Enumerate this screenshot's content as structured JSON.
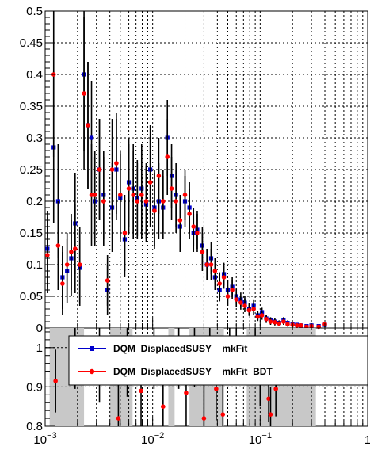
{
  "chart_data": [
    {
      "type": "scatter",
      "panel": "top",
      "xscale": "log",
      "xlim": [
        0.001,
        1
      ],
      "ylim": [
        0,
        0.5
      ],
      "grid": true,
      "yticks": [
        {
          "value": 0,
          "label": "0"
        },
        {
          "value": 0.05,
          "label": "0.05"
        },
        {
          "value": 0.1,
          "label": "0.1"
        },
        {
          "value": 0.15,
          "label": "0.15"
        },
        {
          "value": 0.2,
          "label": "0.2"
        },
        {
          "value": 0.25,
          "label": "0.25"
        },
        {
          "value": 0.3,
          "label": "0.3"
        },
        {
          "value": 0.35,
          "label": "0.35"
        },
        {
          "value": 0.4,
          "label": "0.4"
        },
        {
          "value": 0.45,
          "label": "0.45"
        },
        {
          "value": 0.5,
          "label": "0.5"
        }
      ],
      "series": [
        {
          "name": "DQM_DisplacedSUSY__mkFit_",
          "color": "#0000cc",
          "marker": "square",
          "x": [
            0.00105,
            0.0012,
            0.00132,
            0.00145,
            0.0016,
            0.00175,
            0.0019,
            0.0021,
            0.0023,
            0.0025,
            0.0027,
            0.0029,
            0.0032,
            0.0035,
            0.0038,
            0.0042,
            0.0046,
            0.005,
            0.0055,
            0.006,
            0.0066,
            0.0072,
            0.0079,
            0.0087,
            0.0095,
            0.0104,
            0.0114,
            0.0125,
            0.0137,
            0.015,
            0.0165,
            0.018,
            0.02,
            0.022,
            0.024,
            0.026,
            0.029,
            0.032,
            0.035,
            0.038,
            0.042,
            0.046,
            0.05,
            0.055,
            0.06,
            0.066,
            0.072,
            0.079,
            0.087,
            0.095,
            0.104,
            0.114,
            0.125,
            0.137,
            0.15,
            0.165,
            0.18,
            0.2,
            0.22,
            0.24,
            0.27,
            0.3,
            0.35,
            0.4
          ],
          "y": [
            0.125,
            0.285,
            0.2,
            0.08,
            0.09,
            0.11,
            0.165,
            0.095,
            0.4,
            0.32,
            0.3,
            0.2,
            0.25,
            0.21,
            0.06,
            0.19,
            0.25,
            0.205,
            0.14,
            0.23,
            0.22,
            0.205,
            0.22,
            0.195,
            0.25,
            0.19,
            0.2,
            0.19,
            0.3,
            0.24,
            0.21,
            0.16,
            0.2,
            0.19,
            0.15,
            0.155,
            0.13,
            0.1,
            0.11,
            0.08,
            0.06,
            0.085,
            0.06,
            0.065,
            0.05,
            0.045,
            0.04,
            0.03,
            0.035,
            0.02,
            0.025,
            0.015,
            0.012,
            0.01,
            0.008,
            0.012,
            0.008,
            0.006,
            0.005,
            0.004,
            0.003,
            0.004,
            0.003,
            0.005
          ],
          "err": [
            0.06,
            0.12,
            0.09,
            0.05,
            0.05,
            0.06,
            0.08,
            0.06,
            0.12,
            0.1,
            0.09,
            0.07,
            0.08,
            0.07,
            0.04,
            0.07,
            0.08,
            0.07,
            0.06,
            0.07,
            0.07,
            0.06,
            0.07,
            0.06,
            0.07,
            0.06,
            0.06,
            0.05,
            0.06,
            0.05,
            0.05,
            0.04,
            0.04,
            0.04,
            0.03,
            0.03,
            0.03,
            0.025,
            0.025,
            0.02,
            0.018,
            0.018,
            0.015,
            0.015,
            0.012,
            0.011,
            0.01,
            0.009,
            0.009,
            0.007,
            0.007,
            0.006,
            0.005,
            0.005,
            0.004,
            0.005,
            0.004,
            0.004,
            0.003,
            0.003,
            0.003,
            0.003,
            0.003,
            0.004
          ]
        },
        {
          "name": "DQM_DisplacedSUSY__mkFit_BDT_",
          "color": "#ff0000",
          "marker": "circle",
          "x": [
            0.00105,
            0.0012,
            0.00132,
            0.00145,
            0.0016,
            0.00175,
            0.0019,
            0.0021,
            0.0023,
            0.0025,
            0.0027,
            0.0029,
            0.0032,
            0.0035,
            0.0038,
            0.0042,
            0.0046,
            0.005,
            0.0055,
            0.006,
            0.0066,
            0.0072,
            0.0079,
            0.0087,
            0.0095,
            0.0104,
            0.0114,
            0.0125,
            0.0137,
            0.015,
            0.0165,
            0.018,
            0.02,
            0.022,
            0.024,
            0.026,
            0.029,
            0.032,
            0.035,
            0.038,
            0.042,
            0.046,
            0.05,
            0.055,
            0.06,
            0.066,
            0.072,
            0.079,
            0.087,
            0.095,
            0.104,
            0.114,
            0.125,
            0.137,
            0.15,
            0.165,
            0.18,
            0.2,
            0.22,
            0.24,
            0.27,
            0.3,
            0.35,
            0.4
          ],
          "y": [
            0.115,
            0.4,
            0.13,
            0.07,
            0.1,
            0.12,
            0.125,
            0.1,
            0.37,
            0.32,
            0.21,
            0.21,
            0.25,
            0.2,
            0.075,
            0.25,
            0.26,
            0.21,
            0.15,
            0.22,
            0.21,
            0.2,
            0.21,
            0.2,
            0.23,
            0.185,
            0.24,
            0.2,
            0.27,
            0.22,
            0.2,
            0.17,
            0.21,
            0.18,
            0.16,
            0.15,
            0.12,
            0.1,
            0.1,
            0.09,
            0.07,
            0.08,
            0.05,
            0.06,
            0.045,
            0.04,
            0.035,
            0.028,
            0.03,
            0.018,
            0.02,
            0.014,
            0.01,
            0.009,
            0.007,
            0.01,
            0.006,
            0.005,
            0.004,
            0.004,
            0.002,
            0.003,
            0.002,
            0.006
          ],
          "err": [
            0.06,
            0.13,
            0.07,
            0.05,
            0.05,
            0.06,
            0.07,
            0.06,
            0.12,
            0.1,
            0.08,
            0.07,
            0.08,
            0.07,
            0.04,
            0.08,
            0.08,
            0.07,
            0.06,
            0.07,
            0.07,
            0.06,
            0.07,
            0.06,
            0.07,
            0.06,
            0.06,
            0.05,
            0.06,
            0.05,
            0.05,
            0.04,
            0.04,
            0.04,
            0.03,
            0.03,
            0.03,
            0.025,
            0.025,
            0.02,
            0.018,
            0.018,
            0.015,
            0.015,
            0.012,
            0.011,
            0.01,
            0.009,
            0.009,
            0.007,
            0.007,
            0.006,
            0.005,
            0.005,
            0.004,
            0.005,
            0.004,
            0.004,
            0.003,
            0.003,
            0.003,
            0.003,
            0.003,
            0.004
          ]
        }
      ],
      "legend": {
        "position": "bottom-right",
        "entries": [
          "DQM_DisplacedSUSY__mkFit_",
          "DQM_DisplacedSUSY__mkFit_BDT_"
        ]
      }
    },
    {
      "type": "scatter",
      "panel": "ratio",
      "xscale": "log",
      "xlim": [
        0.001,
        1
      ],
      "ylim": [
        0.8,
        1.05
      ],
      "grid": true,
      "yticks": [
        {
          "value": 0.8,
          "label": "0.8"
        },
        {
          "value": 0.9,
          "label": "0.9"
        },
        {
          "value": 1,
          "label": "1"
        }
      ],
      "xticks": [
        {
          "value": 0.001,
          "base": "10",
          "exp": "−3"
        },
        {
          "value": 0.01,
          "base": "10",
          "exp": "−2"
        },
        {
          "value": 0.1,
          "base": "10",
          "exp": "−1"
        },
        {
          "value": 1,
          "base": "1",
          "exp": ""
        }
      ],
      "band_color": "#c8c8c8",
      "series": [
        {
          "name": "DQM_DisplacedSUSY__mkFit_BDT_",
          "color": "#ff0000",
          "marker": "circle",
          "x": [
            0.00125,
            0.0019,
            0.0032,
            0.0048,
            0.0058,
            0.0078,
            0.0103,
            0.0125,
            0.0175,
            0.0205,
            0.0245,
            0.03,
            0.034,
            0.039,
            0.045,
            0.052,
            0.06,
            0.09,
            0.1,
            0.12,
            0.125,
            0.14
          ],
          "y": [
            0.915,
            0.995,
            0.96,
            0.82,
            0.995,
            0.89,
            0.995,
            0.85,
            0.995,
            0.885,
            0.99,
            0.82,
            0.995,
            0.895,
            0.83,
            0.99,
            0.995,
            0.995,
            0.91,
            0.87,
            0.83,
            0.895
          ],
          "err": [
            0.08,
            0.1,
            0.1,
            0.1,
            0.12,
            0.1,
            0.1,
            0.1,
            0.1,
            0.1,
            0.09,
            0.1,
            0.09,
            0.08,
            0.08,
            0.07,
            0.07,
            0.08,
            0.06,
            0.06,
            0.07,
            0.07
          ]
        }
      ],
      "legend": {
        "position": "top-right",
        "entries": [
          "DQM_DisplacedSUSY__mkFit_",
          "DQM_DisplacedSUSY__mkFit_BDT_"
        ]
      }
    }
  ]
}
